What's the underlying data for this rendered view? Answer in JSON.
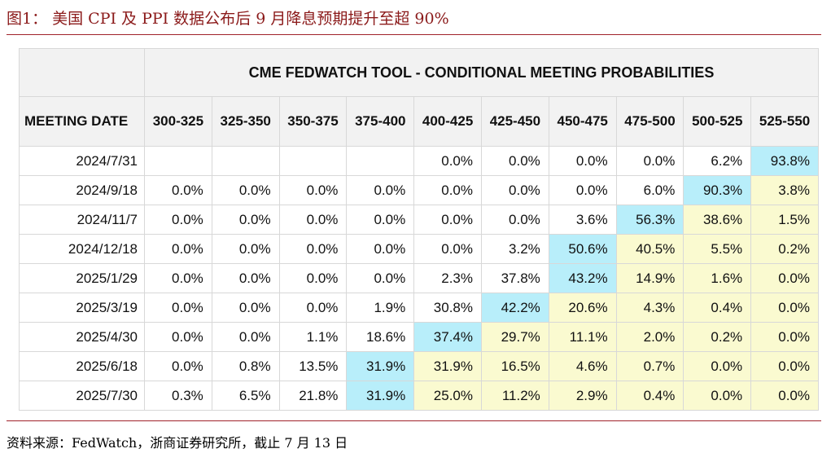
{
  "figure": {
    "title": "图1：  美国 CPI 及 PPI 数据公布后 9 月降息预期提升至超 90%",
    "source": "资料来源：FedWatch，浙商证券研究所，截止 7 月 13 日"
  },
  "colors": {
    "accent_red": "#a0222a",
    "header_bg": "#f2f2f2",
    "most_likely_cell": "#b8eefa",
    "higher_rate_cell": "#fafad0",
    "plain_cell": "#ffffff"
  },
  "chart_data": {
    "type": "table",
    "title": "CME FEDWATCH TOOL - CONDITIONAL MEETING PROBABILITIES",
    "row_header_label": "MEETING DATE",
    "columns": [
      "300-325",
      "325-350",
      "350-375",
      "375-400",
      "400-425",
      "425-450",
      "450-475",
      "475-500",
      "500-525",
      "525-550"
    ],
    "rows": [
      {
        "date": "2024/7/31",
        "values": [
          "",
          "",
          "",
          "",
          "0.0%",
          "0.0%",
          "0.0%",
          "0.0%",
          "6.2%",
          "93.8%"
        ]
      },
      {
        "date": "2024/9/18",
        "values": [
          "0.0%",
          "0.0%",
          "0.0%",
          "0.0%",
          "0.0%",
          "0.0%",
          "0.0%",
          "6.0%",
          "90.3%",
          "3.8%"
        ]
      },
      {
        "date": "2024/11/7",
        "values": [
          "0.0%",
          "0.0%",
          "0.0%",
          "0.0%",
          "0.0%",
          "0.0%",
          "3.6%",
          "56.3%",
          "38.6%",
          "1.5%"
        ]
      },
      {
        "date": "2024/12/18",
        "values": [
          "0.0%",
          "0.0%",
          "0.0%",
          "0.0%",
          "0.0%",
          "3.2%",
          "50.6%",
          "40.5%",
          "5.5%",
          "0.2%"
        ]
      },
      {
        "date": "2025/1/29",
        "values": [
          "0.0%",
          "0.0%",
          "0.0%",
          "0.0%",
          "2.3%",
          "37.8%",
          "43.2%",
          "14.9%",
          "1.6%",
          "0.0%"
        ]
      },
      {
        "date": "2025/3/19",
        "values": [
          "0.0%",
          "0.0%",
          "0.0%",
          "1.9%",
          "30.8%",
          "42.2%",
          "20.6%",
          "4.3%",
          "0.4%",
          "0.0%"
        ]
      },
      {
        "date": "2025/4/30",
        "values": [
          "0.0%",
          "0.0%",
          "1.1%",
          "18.6%",
          "37.4%",
          "29.7%",
          "11.1%",
          "2.0%",
          "0.2%",
          "0.0%"
        ]
      },
      {
        "date": "2025/6/18",
        "values": [
          "0.0%",
          "0.8%",
          "13.5%",
          "31.9%",
          "31.9%",
          "16.5%",
          "4.6%",
          "0.7%",
          "0.0%",
          "0.0%"
        ]
      },
      {
        "date": "2025/7/30",
        "values": [
          "0.3%",
          "6.5%",
          "21.8%",
          "31.9%",
          "25.0%",
          "11.2%",
          "2.9%",
          "0.4%",
          "0.0%",
          "0.0%"
        ]
      }
    ],
    "most_likely_column": [
      9,
      8,
      7,
      6,
      6,
      5,
      4,
      3,
      3
    ]
  }
}
